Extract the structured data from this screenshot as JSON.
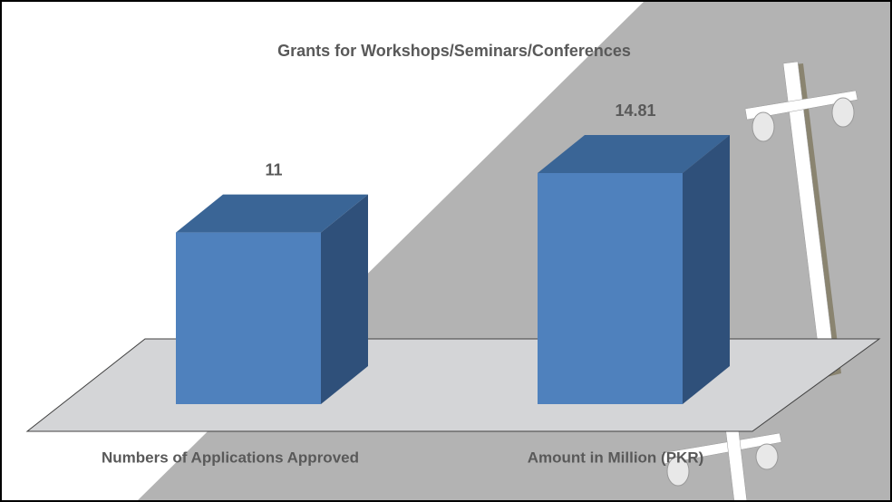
{
  "chart_data": {
    "type": "bar3d",
    "title": "Grants for Workshops/Seminars/Conferences",
    "categories": [
      "Numbers of Applications Approved",
      "Amount in Million (PKR)"
    ],
    "values": [
      11,
      14.81
    ],
    "color": "#4f81bd"
  }
}
